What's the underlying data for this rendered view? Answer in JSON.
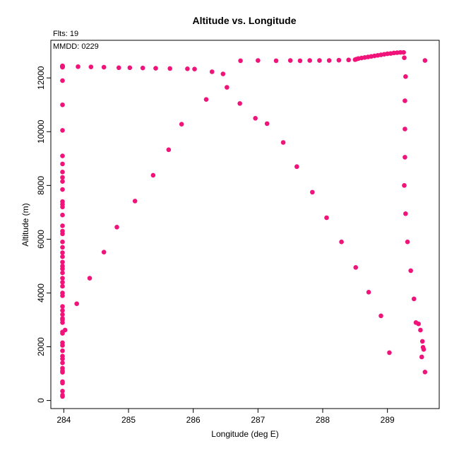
{
  "chart_data": {
    "type": "scatter",
    "title": "Altitude vs. Longitude",
    "xlabel": "Longitude (deg E)",
    "ylabel": "Altitude (m)",
    "annotations": [
      "Flts: 19",
      "MMDD: 0229"
    ],
    "xlim": [
      283.8,
      289.8
    ],
    "ylim": [
      -300,
      13400
    ],
    "xticks": [
      284,
      285,
      286,
      287,
      288,
      289
    ],
    "yticks": [
      0,
      2000,
      4000,
      6000,
      8000,
      10000,
      12000
    ],
    "grid": false,
    "point_color": "#f0137a",
    "series": [
      {
        "x": [
          283.98,
          283.98,
          283.98,
          283.98,
          283.98,
          283.98,
          283.98,
          283.98,
          283.98,
          283.98,
          283.98,
          283.98,
          283.98,
          283.98,
          283.98,
          283.98,
          283.98,
          283.98,
          283.98,
          283.98,
          283.98,
          283.98,
          283.98,
          283.98,
          283.98,
          283.98,
          283.98,
          283.98,
          283.98,
          283.98,
          283.98,
          283.98,
          283.98,
          283.98,
          283.98,
          283.98,
          283.98,
          283.98,
          283.98,
          283.98,
          283.98,
          283.98,
          283.98,
          283.98,
          283.98,
          283.98,
          283.98,
          283.98,
          283.98,
          283.98,
          283.98,
          283.98,
          283.98,
          283.98,
          283.98,
          283.98,
          283.98,
          283.98,
          283.98,
          284.02,
          284.2,
          284.22,
          284.4,
          284.42,
          284.62,
          284.62,
          284.82,
          284.85,
          285.02,
          285.1,
          285.22,
          285.38,
          285.42,
          285.62,
          285.64,
          285.82,
          285.91,
          286.02,
          286.2,
          286.29,
          286.46,
          286.52,
          286.72,
          286.96,
          287.14,
          287.39,
          287.6,
          287.84,
          288.06,
          288.29,
          288.51,
          288.71,
          288.9,
          289.03,
          289.26,
          289.28,
          289.27,
          289.27,
          289.27,
          289.26,
          289.28,
          289.31,
          289.36,
          289.41,
          289.44,
          289.48,
          289.51,
          289.53,
          289.54,
          289.55,
          289.56,
          289.58,
          289.58,
          286.73,
          287.0,
          287.28,
          287.5,
          287.65,
          287.8,
          287.95,
          288.1,
          288.25,
          288.4,
          288.5,
          288.52,
          288.55,
          288.6,
          288.65,
          288.7,
          288.75,
          288.8,
          288.85,
          288.9,
          288.95,
          289.0,
          289.05,
          289.1,
          289.15,
          289.2,
          289.25
        ],
        "y": [
          150,
          200,
          350,
          650,
          700,
          1050,
          1100,
          1200,
          1400,
          1550,
          1650,
          1850,
          2050,
          2150,
          2500,
          2550,
          2900,
          3000,
          3050,
          3200,
          3350,
          3500,
          3900,
          4000,
          4250,
          4400,
          4550,
          4750,
          4900,
          5000,
          5150,
          5350,
          5500,
          5700,
          5900,
          6200,
          6300,
          6500,
          6900,
          7200,
          7300,
          7400,
          7850,
          8150,
          8300,
          8500,
          8800,
          9100,
          10050,
          11000,
          11900,
          12400,
          12450,
          12420,
          12440,
          12430,
          12410,
          12420,
          12430,
          2620,
          3600,
          12420,
          4550,
          12410,
          5520,
          12400,
          6450,
          12380,
          12380,
          7420,
          12370,
          8380,
          12360,
          9330,
          12350,
          10280,
          12340,
          12330,
          11200,
          12230,
          12150,
          11650,
          11050,
          10500,
          10300,
          9600,
          8700,
          7750,
          6800,
          5900,
          4950,
          4030,
          3150,
          1780,
          12750,
          12050,
          11150,
          10100,
          9050,
          8000,
          6950,
          5900,
          4830,
          3780,
          2900,
          2850,
          2620,
          1620,
          2200,
          1980,
          1900,
          1060,
          12650,
          12640,
          12650,
          12640,
          12650,
          12640,
          12650,
          12650,
          12650,
          12660,
          12670,
          12680,
          12700,
          12720,
          12740,
          12760,
          12780,
          12800,
          12820,
          12840,
          12860,
          12880,
          12900,
          12910,
          12930,
          12940,
          12950,
          12950
        ]
      }
    ]
  }
}
